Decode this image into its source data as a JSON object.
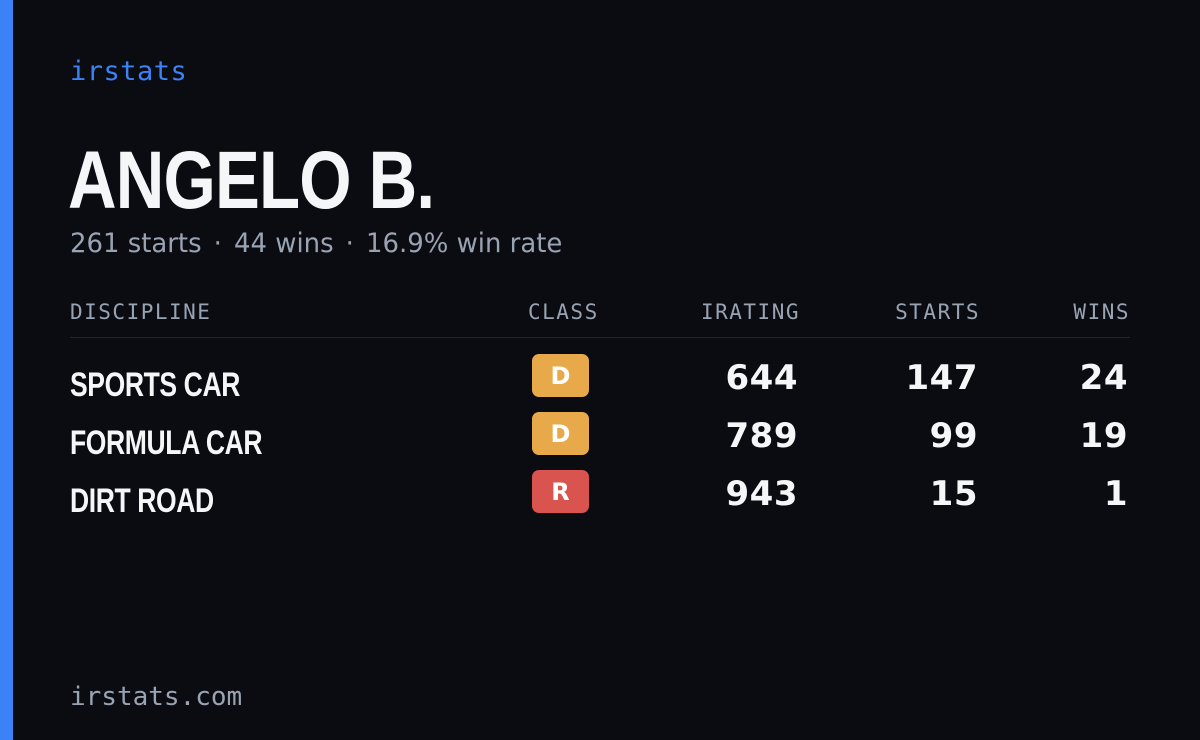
{
  "brand": "irstats",
  "driver_name": "ANGELO B.",
  "summary": {
    "starts": "261 starts",
    "wins": "44 wins",
    "win_rate": "16.9% win rate",
    "separator": "·"
  },
  "table": {
    "headers": {
      "discipline": "DISCIPLINE",
      "class": "CLASS",
      "irating": "IRATING",
      "starts": "STARTS",
      "wins": "WINS"
    },
    "rows": [
      {
        "discipline": "SPORTS CAR",
        "class": "D",
        "class_color": "#e8a94a",
        "irating": "644",
        "starts": "147",
        "wins": "24"
      },
      {
        "discipline": "FORMULA CAR",
        "class": "D",
        "class_color": "#e8a94a",
        "irating": "789",
        "starts": "99",
        "wins": "19"
      },
      {
        "discipline": "DIRT ROAD",
        "class": "R",
        "class_color": "#d9534f",
        "irating": "943",
        "starts": "15",
        "wins": "1"
      }
    ]
  },
  "footer": "irstats.com",
  "colors": {
    "background": "#0a0c12",
    "accent": "#3b82f6",
    "muted": "#9aa3b2"
  }
}
